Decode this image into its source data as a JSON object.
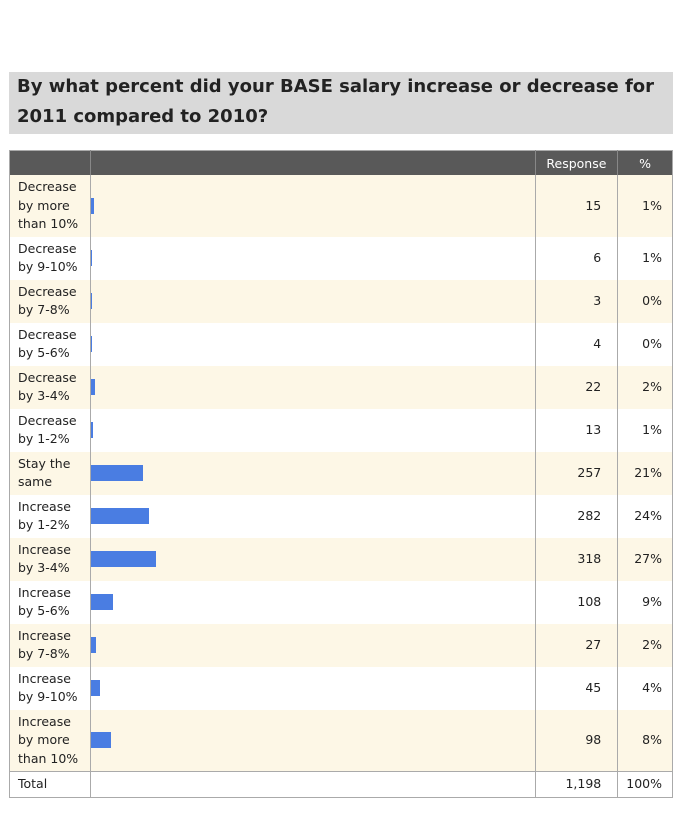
{
  "header": {
    "title": "By what percent did your BASE salary  increase or decrease for 2011 compared to 2010?"
  },
  "table": {
    "columns": [
      "Response",
      "%"
    ],
    "rows": [
      {
        "label": "Decrease by more than 10%",
        "response": 15,
        "percent": "1%"
      },
      {
        "label": "Decrease by 9-10%",
        "response": 6,
        "percent": "1%"
      },
      {
        "label": "Decrease by 7-8%",
        "response": 3,
        "percent": "0%"
      },
      {
        "label": "Decrease by 5-6%",
        "response": 4,
        "percent": "0%"
      },
      {
        "label": "Decrease by 3-4%",
        "response": 22,
        "percent": "2%"
      },
      {
        "label": "Decrease by 1-2%",
        "response": 13,
        "percent": "1%"
      },
      {
        "label": "Stay the same",
        "response": 257,
        "percent": "21%"
      },
      {
        "label": "Increase by 1-2%",
        "response": 282,
        "percent": "24%"
      },
      {
        "label": "Increase by 3-4%",
        "response": 318,
        "percent": "27%"
      },
      {
        "label": "Increase by 5-6%",
        "response": 108,
        "percent": "9%"
      },
      {
        "label": "Increase by 7-8%",
        "response": 27,
        "percent": "2%"
      },
      {
        "label": "Increase by 9-10%",
        "response": 45,
        "percent": "4%"
      },
      {
        "label": "Increase by more than 10%",
        "response": 98,
        "percent": "8%"
      }
    ],
    "total": {
      "label": "Total",
      "response": "1,198",
      "percent": "100%"
    }
  }
}
